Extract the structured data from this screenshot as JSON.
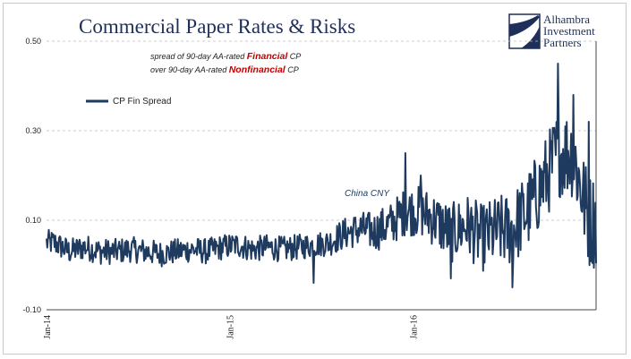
{
  "title": "Commercial Paper Rates & Risks",
  "logo": {
    "line1": "Alhambra",
    "line2": "Investment",
    "line3": "Partners",
    "icon": "alhambra-logo-icon",
    "color": "#1f2f5a"
  },
  "annotation": {
    "line1_prefix": "spread of 90-day AA-rated ",
    "line1_emphasis": "Financial",
    "line1_suffix": " CP",
    "line2_prefix": "over 90-day AA-rated ",
    "line2_emphasis": "Nonfinancial",
    "line2_suffix": " CP",
    "emphasis_color": "#c00000"
  },
  "china_label": "China CNY",
  "colors": {
    "series": "#1f3a5f",
    "grid": "#bdbdbd",
    "axis": "#444444"
  },
  "chart_data": {
    "type": "line",
    "title": "Commercial Paper Rates & Risks",
    "xlabel": "",
    "ylabel": "",
    "ylim": [
      -0.1,
      0.5
    ],
    "y_ticks": [
      "-0.10",
      "0.10",
      "0.30",
      "0.50"
    ],
    "y_tick_values": [
      -0.1,
      0.1,
      0.3,
      0.5
    ],
    "x_ticks": [
      "Jan-14",
      "Jan-15",
      "Jan-16"
    ],
    "x_tick_positions": [
      "2014-01",
      "2015-01",
      "2016-01"
    ],
    "x_range": [
      "2014-01",
      "2016-12"
    ],
    "grid": "horizontal dashed",
    "legend": "upper-left",
    "series": [
      {
        "name": "CP Fin Spread",
        "color": "#1f3a5f",
        "sampling": "daily, Jan-14 to Dec-16",
        "anchors": [
          [
            "2014-01",
            0.05
          ],
          [
            "2014-02",
            0.03
          ],
          [
            "2014-03",
            0.04
          ],
          [
            "2014-04",
            0.03
          ],
          [
            "2014-05",
            0.03
          ],
          [
            "2014-06",
            0.035
          ],
          [
            "2014-07",
            0.03
          ],
          [
            "2014-08",
            0.025
          ],
          [
            "2014-09",
            0.03
          ],
          [
            "2014-10",
            0.035
          ],
          [
            "2014-11",
            0.03
          ],
          [
            "2014-12",
            0.04
          ],
          [
            "2015-01",
            0.045
          ],
          [
            "2015-02",
            0.035
          ],
          [
            "2015-03",
            0.04
          ],
          [
            "2015-04",
            0.035
          ],
          [
            "2015-05",
            0.04
          ],
          [
            "2015-06",
            0.045
          ],
          [
            "2015-07",
            0.05
          ],
          [
            "2015-08",
            0.07
          ],
          [
            "2015-09",
            0.08
          ],
          [
            "2015-10",
            0.075
          ],
          [
            "2015-11",
            0.09
          ],
          [
            "2015-12",
            0.12
          ],
          [
            "2016-01",
            0.12
          ],
          [
            "2016-02",
            0.1
          ],
          [
            "2016-03",
            0.07
          ],
          [
            "2016-04",
            0.09
          ],
          [
            "2016-05",
            0.06
          ],
          [
            "2016-06",
            0.075
          ],
          [
            "2016-07",
            0.08
          ],
          [
            "2016-08",
            0.12
          ],
          [
            "2016-09",
            0.18
          ],
          [
            "2016-10",
            0.25
          ],
          [
            "2016-11",
            0.25
          ],
          [
            "2016-12",
            0.1
          ]
        ],
        "peaks": [
          [
            "2015-12",
            0.25
          ],
          [
            "2016-01",
            0.2
          ],
          [
            "2016-10",
            0.45
          ],
          [
            "2016-11",
            0.38
          ],
          [
            "2016-12",
            0.32
          ]
        ],
        "troughs": [
          [
            "2015-06",
            -0.04
          ],
          [
            "2016-07",
            -0.05
          ],
          [
            "2016-03",
            -0.03
          ]
        ]
      }
    ]
  }
}
